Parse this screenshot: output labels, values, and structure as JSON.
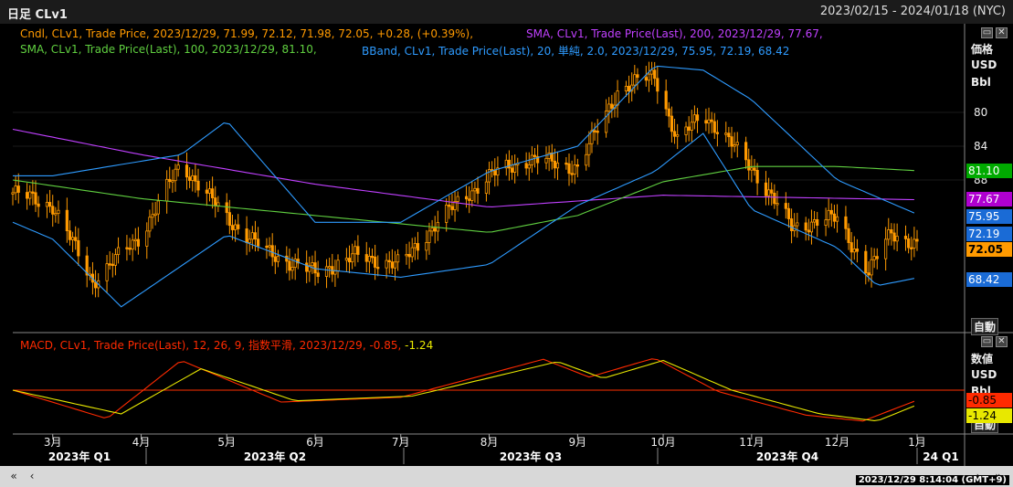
{
  "header": {
    "title": "日足  CLv1",
    "range": "2023/02/15 - 2024/01/18 (NYC)"
  },
  "legend": {
    "cndl": "Cndl, CLv1, Trade Price, 2023/12/29, 71.99, 72.12, 71.98, 72.05, +0.28, (+0.39%),",
    "sma200": "SMA, CLv1, Trade Price(Last),  200, 2023/12/29, 77.67,",
    "sma100": "SMA, CLv1, Trade Price(Last),  100, 2023/12/29, 81.10,",
    "bband": "BBand, CLv1, Trade Price(Last),  20, 単純, 2.0, 2023/12/29, 75.95, 72.19, 68.42",
    "macd_title": "MACD, CLv1, Trade Price(Last),  12, 26, 9, 指数平滑, 2023/12/29, ",
    "macd_v1": "-0.85",
    "macd_v2": "-1.24"
  },
  "right_panel": {
    "price_labels": [
      "価格",
      "USD",
      "Bbl"
    ],
    "macd_labels": [
      "数値",
      "USD",
      "Bbl"
    ],
    "auto_label": "自動",
    "auto_label_2": "自動",
    "ticks": [
      "88",
      "84",
      "80"
    ]
  },
  "value_pills": [
    {
      "text": "81.10",
      "bg": "#00aa00",
      "fg": "#ffffff"
    },
    {
      "text": "77.67",
      "bg": "#b000d0",
      "fg": "#ffffff"
    },
    {
      "text": "75.95",
      "bg": "#1a6bd6",
      "fg": "#ffffff"
    },
    {
      "text": "72.19",
      "bg": "#1a6bd6",
      "fg": "#ffffff"
    },
    {
      "text": "72.05",
      "bg": "#ff9a00",
      "fg": "#000000"
    },
    {
      "text": "68.42",
      "bg": "#1a6bd6",
      "fg": "#ffffff"
    },
    {
      "text": "-0.85",
      "bg": "#ff2a00",
      "fg": "#000000"
    },
    {
      "text": "-1.24",
      "bg": "#e8e800",
      "fg": "#000000"
    }
  ],
  "x_axis": {
    "months": [
      "3月",
      "4月",
      "5月",
      "6月",
      "7月",
      "8月",
      "9月",
      "10月",
      "11月",
      "12月",
      "1月"
    ],
    "quarters": [
      "2023年 Q1",
      "2023年 Q2",
      "2023年 Q3",
      "2023年 Q4",
      "24 Q1"
    ]
  },
  "footer": {
    "timestamp": "2023/12/29  8:14:04  (GMT+9)"
  },
  "chart_data": {
    "type": "line",
    "symbol": "CLv1",
    "y_ticks": [
      80,
      84,
      88
    ],
    "last_values": {
      "close": 72.05,
      "sma200": 77.67,
      "sma100": 81.1,
      "bb_upper": 75.95,
      "bb_mid": 72.19,
      "bb_lower": 68.42,
      "macd": -0.85,
      "signal": -1.24
    },
    "series": [
      {
        "name": "Cndl",
        "color": "#ff9a00",
        "x": [
          "2023-02-15",
          "2023-03-01",
          "2023-03-15",
          "2023-04-01",
          "2023-04-15",
          "2023-05-01",
          "2023-05-15",
          "2023-06-01",
          "2023-06-15",
          "2023-07-01",
          "2023-07-15",
          "2023-08-01",
          "2023-08-15",
          "2023-09-01",
          "2023-09-15",
          "2023-09-28",
          "2023-10-06",
          "2023-10-15",
          "2023-11-01",
          "2023-11-15",
          "2023-12-01",
          "2023-12-12",
          "2023-12-20",
          "2023-12-29"
        ],
        "values": [
          78.5,
          77.0,
          68.0,
          73.5,
          82.0,
          75.5,
          71.5,
          69.0,
          71.0,
          70.0,
          75.5,
          80.5,
          82.5,
          81.5,
          90.5,
          92.5,
          84.5,
          88.0,
          81.5,
          74.5,
          75.5,
          69.0,
          74.0,
          72.05
        ]
      },
      {
        "name": "SMA 200",
        "color": "#c040ff",
        "x": [
          "2023-02-15",
          "2023-04-01",
          "2023-06-01",
          "2023-08-01",
          "2023-10-01",
          "2023-12-29"
        ],
        "values": [
          86.0,
          83.0,
          79.5,
          76.8,
          78.2,
          77.67
        ]
      },
      {
        "name": "SMA 100",
        "color": "#60d040",
        "x": [
          "2023-02-15",
          "2023-04-01",
          "2023-06-01",
          "2023-08-01",
          "2023-09-01",
          "2023-10-01",
          "2023-11-01",
          "2023-12-01",
          "2023-12-29"
        ],
        "values": [
          80.0,
          77.8,
          75.8,
          73.8,
          75.8,
          79.8,
          81.6,
          81.6,
          81.1
        ]
      },
      {
        "name": "BB Upper",
        "color": "#2e9bff",
        "x": [
          "2023-02-15",
          "2023-03-01",
          "2023-04-15",
          "2023-05-01",
          "2023-06-01",
          "2023-07-01",
          "2023-08-01",
          "2023-09-01",
          "2023-09-28",
          "2023-10-15",
          "2023-11-01",
          "2023-12-01",
          "2023-12-29"
        ],
        "values": [
          80.5,
          80.5,
          83.0,
          87.0,
          75.0,
          75.0,
          81.0,
          84.0,
          93.5,
          93.0,
          89.5,
          80.0,
          75.95
        ]
      },
      {
        "name": "BB Lower",
        "color": "#2e9bff",
        "x": [
          "2023-02-15",
          "2023-03-01",
          "2023-03-25",
          "2023-05-01",
          "2023-06-01",
          "2023-07-01",
          "2023-08-01",
          "2023-09-01",
          "2023-09-28",
          "2023-10-15",
          "2023-11-01",
          "2023-12-01",
          "2023-12-15",
          "2023-12-29"
        ],
        "values": [
          75.0,
          73.0,
          65.0,
          73.5,
          69.5,
          68.5,
          70.0,
          77.0,
          81.0,
          85.5,
          76.5,
          72.0,
          67.5,
          68.42
        ]
      },
      {
        "name": "MACD",
        "color": "#ff2a00",
        "x": [
          "2023-02-15",
          "2023-03-20",
          "2023-04-15",
          "2023-05-20",
          "2023-07-01",
          "2023-08-20",
          "2023-09-05",
          "2023-09-28",
          "2023-10-20",
          "2023-11-20",
          "2023-12-10",
          "2023-12-29"
        ],
        "values": [
          0.0,
          -2.4,
          2.5,
          -1.0,
          -0.6,
          2.6,
          1.1,
          2.7,
          -0.1,
          -2.1,
          -2.6,
          -0.85
        ]
      },
      {
        "name": "Signal",
        "color": "#e8e800",
        "x": [
          "2023-02-15",
          "2023-03-25",
          "2023-04-22",
          "2023-05-25",
          "2023-07-05",
          "2023-08-25",
          "2023-09-10",
          "2023-10-01",
          "2023-10-25",
          "2023-11-25",
          "2023-12-15",
          "2023-12-29"
        ],
        "values": [
          0.0,
          -2.0,
          1.8,
          -0.9,
          -0.5,
          2.4,
          1.0,
          2.5,
          0.0,
          -2.0,
          -2.6,
          -1.24
        ]
      }
    ]
  }
}
